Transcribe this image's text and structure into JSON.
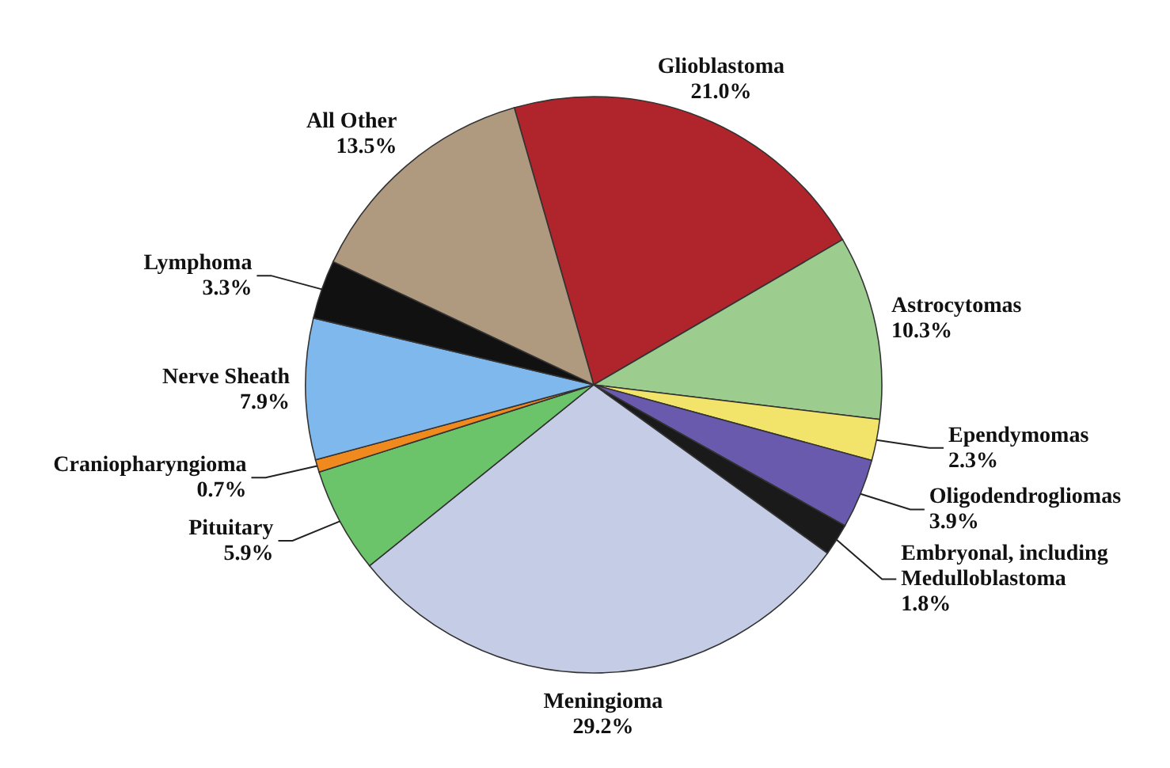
{
  "chart_data": {
    "type": "pie",
    "categories": [
      "Glioblastoma",
      "Astrocytomas",
      "Ependymomas",
      "Oligodendrogliomas",
      "Embryonal, including Medulloblastoma",
      "Meningioma",
      "Pituitary",
      "Craniopharyngioma",
      "Nerve Sheath",
      "Lymphoma",
      "All Other"
    ],
    "values": [
      21.0,
      10.3,
      2.3,
      3.9,
      1.8,
      29.2,
      5.9,
      0.7,
      7.9,
      3.3,
      13.5
    ],
    "colors": [
      "#b0242c",
      "#9dcc8f",
      "#f2e46a",
      "#6a5aad",
      "#1a1a1a",
      "#c5cde6",
      "#6cc46a",
      "#f08a1e",
      "#7fb8ec",
      "#111111",
      "#b09a7f"
    ],
    "value_labels": [
      "21.0%",
      "10.3%",
      "2.3%",
      "3.9%",
      "1.8%",
      "29.2%",
      "5.9%",
      "0.7%",
      "7.9%",
      "3.3%",
      "13.5%"
    ],
    "legend": false
  }
}
